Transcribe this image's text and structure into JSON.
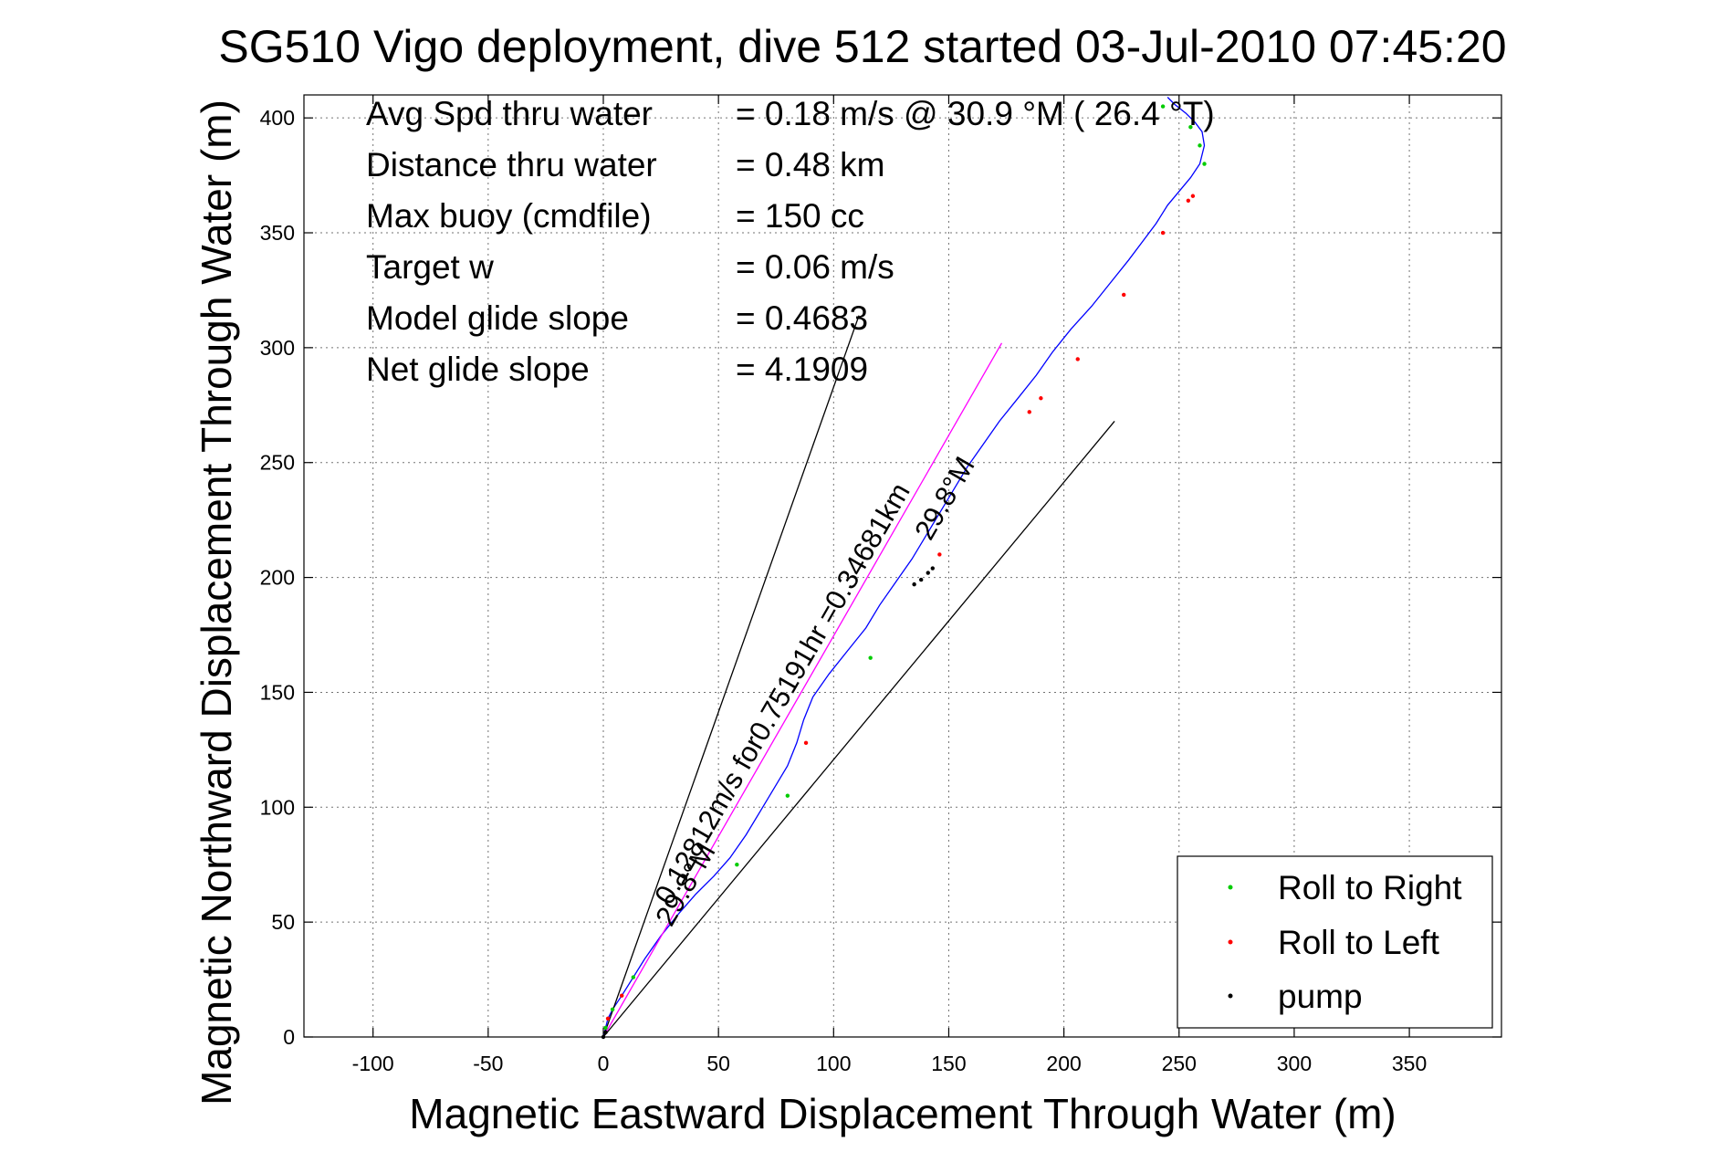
{
  "title": "SG510 Vigo deployment, dive 512 started 03-Jul-2010 07:45:20",
  "chart_data": {
    "type": "line",
    "title": "SG510 Vigo deployment, dive 512 started 03-Jul-2010 07:45:20",
    "xlabel": "Magnetic Eastward Displacement Through Water (m)",
    "ylabel": "Magnetic Northward Displacement Through Water (m)",
    "xlim": [
      -130,
      390
    ],
    "ylim": [
      0,
      410
    ],
    "xticks": [
      -100,
      -50,
      0,
      50,
      100,
      150,
      200,
      250,
      300,
      350
    ],
    "yticks": [
      0,
      50,
      100,
      150,
      200,
      250,
      300,
      350,
      400
    ],
    "grid": true,
    "stats": [
      {
        "label": "Avg Spd thru water",
        "value": "=  0.18 m/s @  30.9 °M ( 26.4 °T)"
      },
      {
        "label": "Distance thru water",
        "value": "=  0.48 km"
      },
      {
        "label": "Max buoy (cmdfile)",
        "value": "= 150 cc"
      },
      {
        "label": "Target w",
        "value": "= 0.06 m/s"
      },
      {
        "label": "Model glide slope",
        "value": "= 0.4683"
      },
      {
        "label": "Net glide slope",
        "value": "= 4.1909"
      }
    ],
    "annotations": {
      "current_label_1": "0.12812m/s for0.75191hr =0.34681km",
      "current_label_2": "29.8°M",
      "mid_label_1": "29.8°M"
    },
    "series": [
      {
        "name": "trajectory",
        "color": "#0000ff",
        "x": [
          0,
          1,
          2,
          4,
          8,
          13,
          18,
          25,
          33,
          40,
          48,
          55,
          62,
          68,
          74,
          80,
          84,
          87,
          91,
          98,
          106,
          114,
          120,
          127,
          134,
          140,
          146,
          152,
          158,
          165,
          172,
          180,
          188,
          195,
          203,
          212,
          220,
          228,
          234,
          240,
          245,
          250,
          255,
          259,
          261,
          260,
          257,
          253,
          248,
          245
        ],
        "y": [
          0,
          4,
          8,
          12,
          18,
          26,
          34,
          44,
          54,
          62,
          70,
          78,
          88,
          98,
          108,
          118,
          128,
          138,
          148,
          158,
          168,
          178,
          188,
          198,
          208,
          218,
          228,
          238,
          248,
          258,
          268,
          278,
          288,
          298,
          308,
          318,
          328,
          338,
          346,
          354,
          362,
          368,
          374,
          380,
          388,
          394,
          398,
          402,
          406,
          409
        ]
      },
      {
        "name": "depth-averaged current",
        "color": "#ff00ff",
        "x": [
          0,
          173
        ],
        "y": [
          0,
          302
        ]
      },
      {
        "name": "envelope-left",
        "color": "#000000",
        "x": [
          0,
          111
        ],
        "y": [
          0,
          314
        ]
      },
      {
        "name": "envelope-right",
        "color": "#000000",
        "x": [
          0,
          222
        ],
        "y": [
          0,
          268
        ]
      }
    ],
    "markers": {
      "roll_right": {
        "name": "Roll to Right",
        "color": "#00cc00",
        "x": [
          1,
          4,
          13,
          58,
          80,
          116,
          243,
          255,
          259,
          261
        ],
        "y": [
          4,
          12,
          26,
          75,
          105,
          165,
          405,
          396,
          388,
          380
        ]
      },
      "roll_left": {
        "name": "Roll to Left",
        "color": "#ff0000",
        "x": [
          2,
          8,
          88,
          146,
          185,
          190,
          206,
          226,
          243,
          254,
          256
        ],
        "y": [
          8,
          18,
          128,
          210,
          272,
          278,
          295,
          323,
          350,
          364,
          366
        ]
      },
      "pump": {
        "name": "pump",
        "color": "#000000",
        "x": [
          0,
          1,
          135,
          138,
          141,
          143
        ],
        "y": [
          0,
          2,
          197,
          199,
          202,
          204
        ]
      }
    },
    "legend": {
      "position": "bottom-right",
      "entries": [
        "Roll to Right",
        "Roll to Left",
        "pump"
      ]
    }
  }
}
